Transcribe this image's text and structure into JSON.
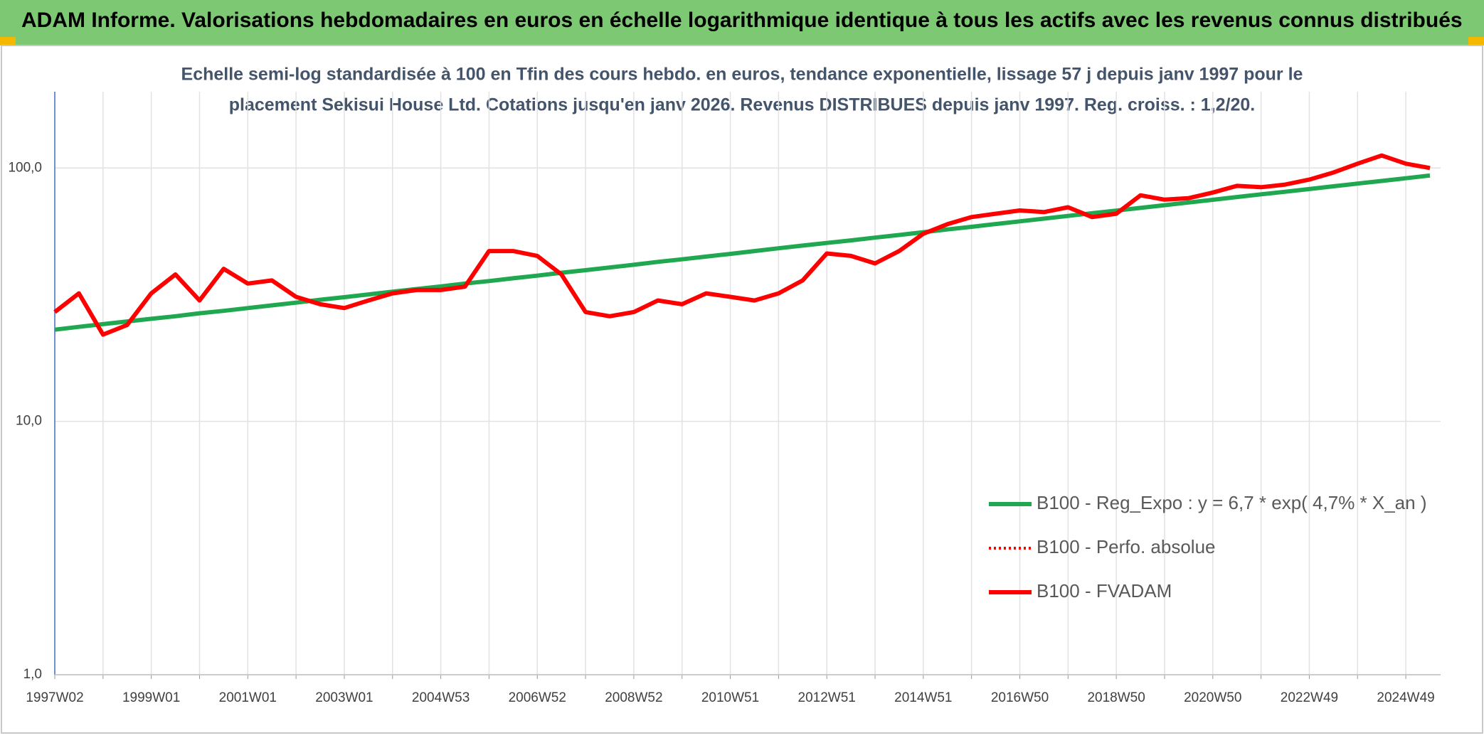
{
  "chart_data": {
    "type": "line",
    "title": "ADAM Informe. Valorisations hebdomadaires en euros en échelle logarithmique identique à tous les actifs avec les revenus connus distribués",
    "subtitle": [
      "Echelle semi-log standardisée à 100 en Tfin des cours hebdo. en euros, tendance exponentielle, lissage 57 j depuis janv 1997 pour le",
      "placement Sekisui House Ltd. Cotations jusqu'en janv 2026. Revenus DISTRIBUES depuis janv 1997. Reg. croiss. : 1,2/20."
    ],
    "categories": [
      "1997W02",
      null,
      null,
      null,
      "1999W01",
      null,
      null,
      null,
      "2001W01",
      null,
      null,
      null,
      "2003W01",
      null,
      null,
      null,
      "2004W53",
      null,
      null,
      null,
      "2006W52",
      null,
      null,
      null,
      "2008W52",
      null,
      null,
      null,
      "2010W51",
      null,
      null,
      null,
      "2012W51",
      null,
      null,
      null,
      "2014W51",
      null,
      null,
      null,
      "2016W50",
      null,
      null,
      null,
      "2018W50",
      null,
      null,
      null,
      "2020W50",
      null,
      null,
      null,
      "2022W49",
      null,
      null,
      null,
      "2024W49",
      null
    ],
    "log_scale": true,
    "ylim": [
      1,
      200
    ],
    "yticks": [
      {
        "value": 1,
        "label": "1,0"
      },
      {
        "value": 10,
        "label": "10,0"
      },
      {
        "value": 100,
        "label": "100,0"
      }
    ],
    "grid": true,
    "legend": "right",
    "series": [
      {
        "name": "B100 - Reg_Expo : y = 6,7 * exp( 4,7% *  X_an )",
        "color": "#1fa84f",
        "style": "solid",
        "values": [
          23.0,
          23.6,
          24.2,
          24.8,
          25.4,
          26.0,
          26.7,
          27.3,
          28.0,
          28.7,
          29.4,
          30.2,
          30.9,
          31.7,
          32.5,
          33.3,
          34.1,
          35.0,
          35.8,
          36.7,
          37.6,
          38.6,
          39.5,
          40.5,
          41.5,
          42.6,
          43.6,
          44.7,
          45.8,
          47.0,
          48.2,
          49.4,
          50.6,
          51.8,
          53.1,
          54.4,
          55.8,
          57.2,
          58.6,
          60.1,
          61.6,
          63.1,
          64.7,
          66.3,
          67.9,
          69.6,
          71.3,
          73.1,
          74.9,
          76.8,
          78.7,
          80.6,
          82.6,
          84.7,
          86.8,
          88.9,
          91.1,
          93.4
        ]
      },
      {
        "name": "B100 - Perfo. absolue",
        "color": "#ff0000",
        "style": "dotted",
        "values": [
          27,
          32,
          22,
          24,
          32,
          38,
          30,
          40,
          35,
          36,
          31,
          29,
          28,
          30,
          32,
          33,
          33,
          34,
          47,
          47,
          45,
          38,
          27,
          26,
          27,
          30,
          29,
          32,
          31,
          30,
          32,
          36,
          46,
          45,
          42,
          47,
          55,
          60,
          64,
          66,
          68,
          67,
          70,
          64,
          66,
          78,
          75,
          76,
          80,
          85,
          84,
          86,
          90,
          96,
          104,
          112,
          104,
          100
        ]
      },
      {
        "name": "B100 - FVADAM",
        "color": "#ff0000",
        "style": "solid",
        "values": [
          27,
          32,
          22,
          24,
          32,
          38,
          30,
          40,
          35,
          36,
          31,
          29,
          28,
          30,
          32,
          33,
          33,
          34,
          47,
          47,
          45,
          38,
          27,
          26,
          27,
          30,
          29,
          32,
          31,
          30,
          32,
          36,
          46,
          45,
          42,
          47,
          55,
          60,
          64,
          66,
          68,
          67,
          70,
          64,
          66,
          78,
          75,
          76,
          80,
          85,
          84,
          86,
          90,
          96,
          104,
          112,
          104,
          100
        ]
      }
    ]
  }
}
